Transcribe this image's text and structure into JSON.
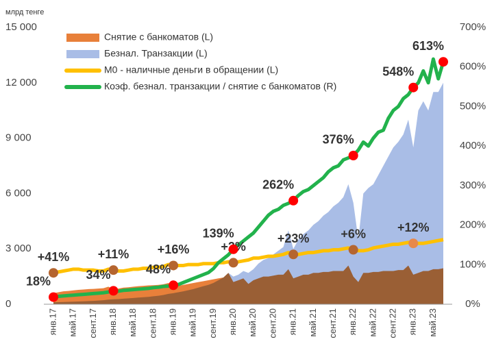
{
  "chart_data": {
    "type": "combo",
    "unit_label": "млрд тенге",
    "categories": [
      "янв.17",
      null,
      null,
      null,
      "май.17",
      null,
      null,
      null,
      "сент.17",
      null,
      null,
      null,
      "янв.18",
      null,
      null,
      null,
      "май.18",
      null,
      null,
      null,
      "сент.18",
      null,
      null,
      null,
      "янв.19",
      null,
      null,
      null,
      "май.19",
      null,
      null,
      null,
      "сент.19",
      null,
      null,
      null,
      "янв.20",
      null,
      null,
      null,
      "май.20",
      null,
      null,
      null,
      "сент.20",
      null,
      null,
      null,
      "янв.21",
      null,
      null,
      null,
      "май.21",
      null,
      null,
      null,
      "сент.21",
      null,
      null,
      null,
      "янв.22",
      null,
      null,
      null,
      "май.22",
      null,
      null,
      null,
      "сент.22",
      null,
      null,
      null,
      "янв.23",
      null,
      null,
      null,
      "май.23",
      null,
      null
    ],
    "ylim": [
      0,
      15000
    ],
    "yticks": [
      0,
      {
        "value": 3000,
        "label": "3 000"
      },
      {
        "value": 6000,
        "label": "6 000"
      },
      {
        "value": 9000,
        "label": "9 000"
      },
      {
        "value": 12000,
        "label": "12 000"
      },
      {
        "value": 15000,
        "label": "15 000"
      }
    ],
    "y2lim": [
      0,
      700
    ],
    "y2ticks": [
      {
        "value": 0,
        "label": "0%"
      },
      {
        "value": 100,
        "label": "100%"
      },
      {
        "value": 200,
        "label": "200%"
      },
      {
        "value": 300,
        "label": "300%"
      },
      {
        "value": 400,
        "label": "400%"
      },
      {
        "value": 500,
        "label": "500%"
      },
      {
        "value": 600,
        "label": "600%"
      },
      {
        "value": 700,
        "label": "700%"
      }
    ],
    "series": [
      {
        "name": "Снятие с банкоматов (L)",
        "kind": "area",
        "color": "#e8803a",
        "values": [
          600,
          650,
          700,
          720,
          750,
          780,
          800,
          820,
          830,
          850,
          870,
          950,
          800,
          850,
          900,
          920,
          950,
          980,
          1000,
          1020,
          1030,
          1050,
          1080,
          1150,
          950,
          1000,
          1050,
          1100,
          1150,
          1200,
          1250,
          1300,
          1350,
          1400,
          1450,
          1700,
          1200,
          1300,
          1400,
          1100,
          1300,
          1400,
          1500,
          1500,
          1550,
          1600,
          1600,
          1900,
          1400,
          1500,
          1600,
          1600,
          1700,
          1700,
          1750,
          1750,
          1800,
          1800,
          1800,
          2100,
          1500,
          1200,
          1700,
          1700,
          1750,
          1750,
          1800,
          1800,
          1800,
          1850,
          1850,
          2100,
          1600,
          1700,
          1800,
          1800,
          1900,
          1900,
          1950
        ]
      },
      {
        "name": "Безнал. Транзакции (L)",
        "kind": "area",
        "color": "#a9bde6",
        "values": [
          100,
          110,
          120,
          130,
          140,
          150,
          160,
          170,
          180,
          200,
          220,
          250,
          270,
          280,
          300,
          320,
          340,
          360,
          380,
          400,
          430,
          460,
          500,
          560,
          600,
          650,
          700,
          760,
          820,
          900,
          980,
          1050,
          1150,
          1300,
          1450,
          1700,
          1500,
          1600,
          1800,
          1700,
          1900,
          2200,
          2400,
          2500,
          2700,
          2900,
          3100,
          4000,
          3000,
          3500,
          3800,
          4000,
          4300,
          4500,
          4800,
          5000,
          5300,
          5500,
          5800,
          6500,
          5500,
          3500,
          6000,
          6300,
          6500,
          7000,
          7500,
          8000,
          8500,
          8800,
          9200,
          10000,
          8500,
          10500,
          11000,
          10500,
          11500,
          11500,
          12000
        ]
      },
      {
        "name": "М0 - наличные деньги в обращении (L)",
        "kind": "line",
        "color": "#ffc000",
        "values": [
          1700,
          1750,
          1800,
          1850,
          1900,
          1900,
          1850,
          1850,
          1850,
          1800,
          1800,
          1900,
          1850,
          1800,
          1800,
          1850,
          1900,
          1900,
          1950,
          1950,
          2000,
          2000,
          2050,
          2150,
          2100,
          2100,
          2100,
          2150,
          2150,
          2150,
          2200,
          2200,
          2200,
          2250,
          2250,
          2300,
          2250,
          2300,
          2350,
          2400,
          2500,
          2500,
          2550,
          2600,
          2600,
          2650,
          2700,
          2800,
          2700,
          2700,
          2750,
          2800,
          2800,
          2850,
          2900,
          2900,
          2950,
          2950,
          3000,
          3050,
          2950,
          2900,
          2900,
          2950,
          3050,
          3100,
          3150,
          3200,
          3250,
          3250,
          3300,
          3350,
          3300,
          3300,
          3300,
          3350,
          3400,
          3450,
          3500
        ]
      },
      {
        "name": "Коэф. безнал. транзакции / снятие с банкоматов (R)",
        "kind": "line",
        "axis": "y2",
        "color": "#22b24c",
        "marker_color": "#ff0000",
        "values": [
          18,
          20,
          21,
          22,
          23,
          24,
          25,
          26,
          27,
          28,
          29,
          31,
          34,
          33,
          35,
          36,
          37,
          38,
          39,
          40,
          42,
          43,
          45,
          46,
          48,
          50,
          55,
          60,
          65,
          70,
          75,
          80,
          90,
          105,
          115,
          125,
          139,
          150,
          160,
          170,
          180,
          195,
          210,
          225,
          235,
          240,
          250,
          255,
          262,
          275,
          285,
          290,
          300,
          310,
          320,
          335,
          345,
          350,
          365,
          370,
          376,
          390,
          410,
          400,
          420,
          435,
          440,
          470,
          490,
          500,
          520,
          530,
          548,
          560,
          590,
          560,
          620,
          570,
          613
        ],
        "value_labels": [
          "18%",
          null,
          null,
          null,
          null,
          null,
          null,
          null,
          null,
          null,
          null,
          null,
          "34%",
          null,
          null,
          null,
          null,
          null,
          null,
          null,
          null,
          null,
          null,
          null,
          "48%",
          null,
          null,
          null,
          null,
          null,
          null,
          null,
          null,
          null,
          null,
          null,
          "139%",
          null,
          null,
          null,
          null,
          null,
          null,
          null,
          null,
          null,
          null,
          null,
          "262%",
          null,
          null,
          null,
          null,
          null,
          null,
          null,
          null,
          null,
          null,
          null,
          "376%",
          null,
          null,
          null,
          null,
          null,
          null,
          null,
          null,
          null,
          null,
          null,
          "548%",
          null,
          null,
          null,
          null,
          null,
          "613%"
        ]
      }
    ],
    "annotations": [
      {
        "text": "+41%",
        "x": "янв.17",
        "color": "#b5652f"
      },
      {
        "text": "+11%",
        "x": "янв.18",
        "color": "#b5652f"
      },
      {
        "text": "+16%",
        "x": "янв.19",
        "color": "#b5652f"
      },
      {
        "text": "+2%",
        "x": "янв.20",
        "color": "#b5652f"
      },
      {
        "text": "+23%",
        "x": "янв.21",
        "color": "#b5652f"
      },
      {
        "text": "+6%",
        "x": "янв.22",
        "color": "#b5652f"
      },
      {
        "text": "+12%",
        "x": "янв.23",
        "color": "#e8894a"
      }
    ],
    "legend": "top-left"
  }
}
